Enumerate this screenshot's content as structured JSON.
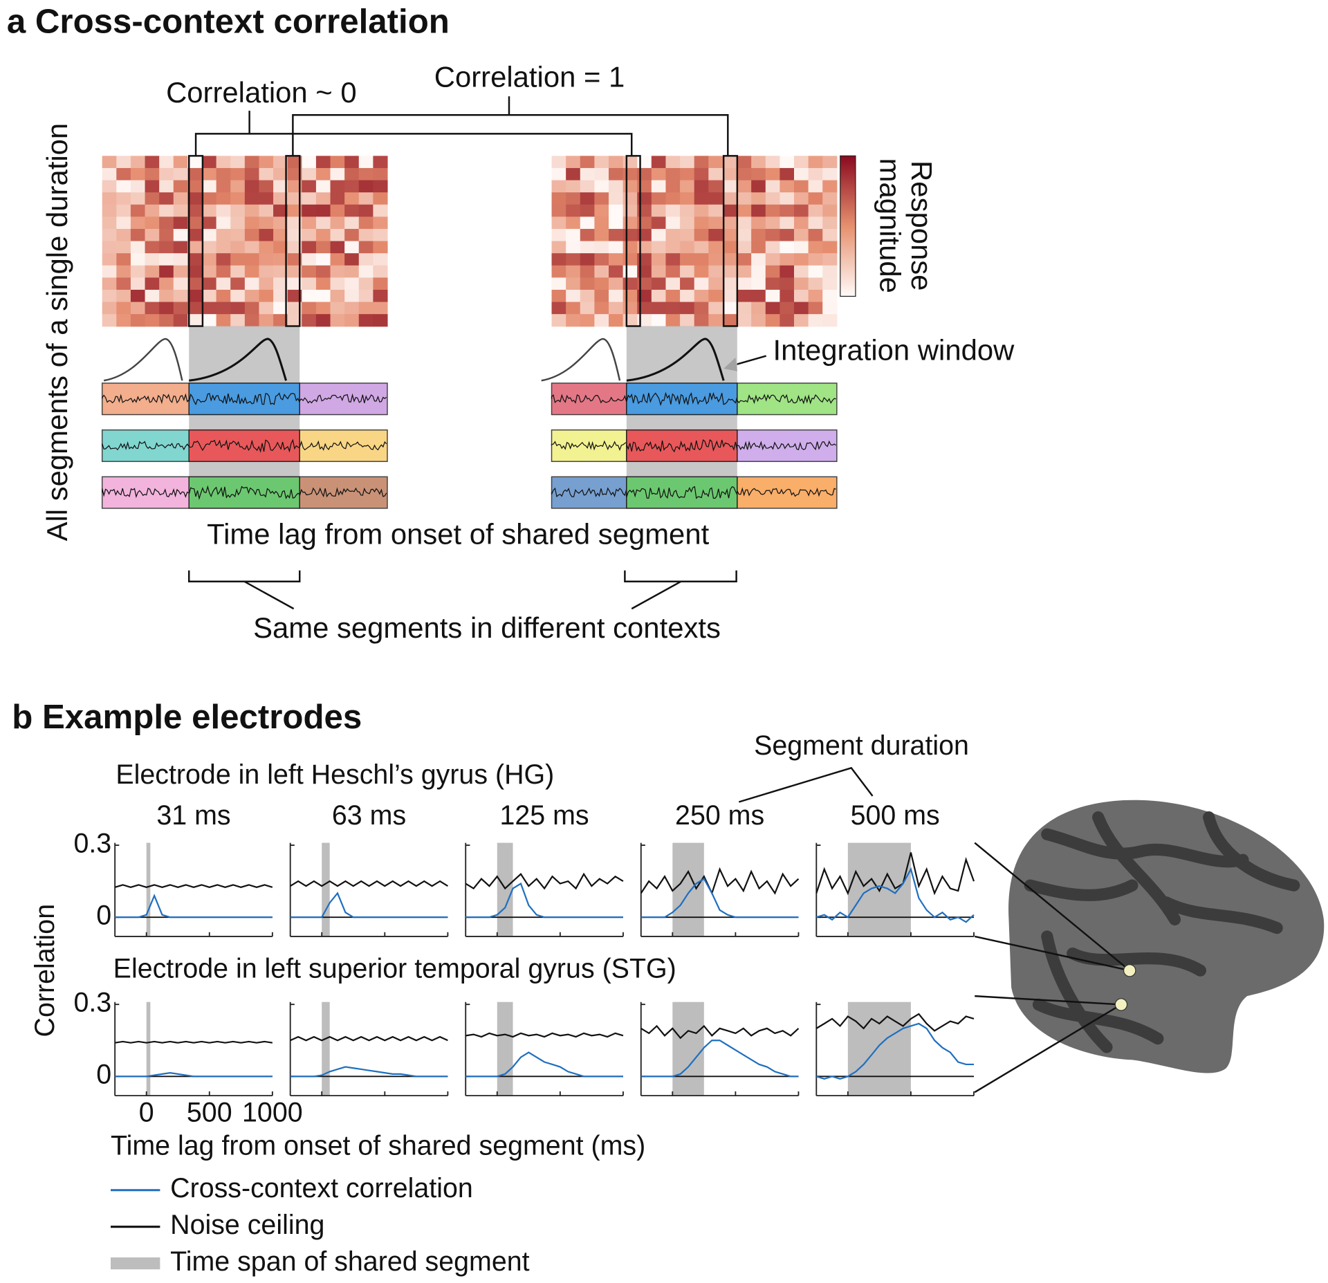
{
  "panel_a": {
    "title": "a Cross-context correlation",
    "corr_zero": "Correlation ~ 0",
    "corr_one": "Correlation = 1",
    "y_label": "All segments of a single duration",
    "colorbar_label": [
      "Response",
      "magnitude"
    ],
    "integration_label": "Integration window",
    "x_label": "Time lag from onset of shared segment",
    "bracket_label": "Same segments in different contexts"
  },
  "panel_b": {
    "title": "b Example electrodes",
    "duration_title": "Segment duration",
    "durations": [
      {
        "value": 31,
        "label": "31 ms"
      },
      {
        "value": 63,
        "label": "63 ms"
      },
      {
        "value": 125,
        "label": "125 ms"
      },
      {
        "value": 250,
        "label": "250 ms"
      },
      {
        "value": 500,
        "label": "500 ms"
      }
    ],
    "y_label": "Correlation",
    "x_label": "Time lag from onset of shared segment (ms)",
    "xlim": [
      -250,
      1000
    ],
    "ylim": [
      -0.08,
      0.31
    ],
    "xticks": [
      0,
      500,
      1000
    ],
    "yticks": [
      0,
      0.3
    ],
    "x": [
      -250,
      -187.5,
      -125,
      -62.5,
      0,
      62.5,
      125,
      187.5,
      250,
      312.5,
      375,
      437.5,
      500,
      562.5,
      625,
      687.5,
      750,
      812.5,
      875,
      937.5,
      1000
    ],
    "span_color": "#bdbdbd",
    "blue_color": "#1f6fc0",
    "black_color": "#111111",
    "legend": [
      "Cross-context correlation",
      "Noise ceiling",
      "Time span of shared segment"
    ],
    "electrodes": [
      {
        "title": "Electrode in left Heschl’s gyrus (HG)",
        "panels": [
          {
            "blue": [
              0,
              0,
              0,
              0,
              0.01,
              0.09,
              0.01,
              0,
              0,
              0,
              0,
              0,
              0,
              0,
              0,
              0,
              0,
              0,
              0,
              0,
              0
            ],
            "black": [
              0.125,
              0.135,
              0.125,
              0.135,
              0.125,
              0.135,
              0.125,
              0.135,
              0.125,
              0.135,
              0.125,
              0.135,
              0.125,
              0.135,
              0.125,
              0.135,
              0.125,
              0.135,
              0.125,
              0.135,
              0.125
            ]
          },
          {
            "blue": [
              0,
              0,
              0,
              0,
              0,
              0.06,
              0.1,
              0.02,
              0,
              0,
              0,
              0,
              0,
              0,
              0,
              0,
              0,
              0,
              0,
              0,
              0
            ],
            "black": [
              0.13,
              0.15,
              0.13,
              0.15,
              0.13,
              0.15,
              0.13,
              0.15,
              0.13,
              0.15,
              0.13,
              0.15,
              0.13,
              0.15,
              0.13,
              0.15,
              0.13,
              0.15,
              0.13,
              0.15,
              0.13
            ]
          },
          {
            "blue": [
              0,
              0,
              0,
              0,
              0.01,
              0.04,
              0.12,
              0.14,
              0.05,
              0.01,
              0,
              0,
              0,
              0,
              0,
              0,
              0,
              0,
              0,
              0,
              0
            ],
            "black": [
              0.14,
              0.12,
              0.16,
              0.13,
              0.17,
              0.12,
              0.15,
              0.18,
              0.13,
              0.16,
              0.12,
              0.17,
              0.14,
              0.15,
              0.12,
              0.18,
              0.13,
              0.16,
              0.14,
              0.17,
              0.15
            ]
          },
          {
            "blue": [
              0,
              0,
              0,
              0,
              0.02,
              0.05,
              0.1,
              0.14,
              0.16,
              0.1,
              0.03,
              0.01,
              0,
              0,
              0,
              0,
              0,
              0,
              0,
              0,
              0
            ],
            "black": [
              0.1,
              0.15,
              0.12,
              0.17,
              0.11,
              0.14,
              0.19,
              0.12,
              0.17,
              0.1,
              0.2,
              0.13,
              0.16,
              0.11,
              0.19,
              0.12,
              0.15,
              0.1,
              0.18,
              0.13,
              0.16
            ]
          },
          {
            "blue": [
              0,
              0.01,
              -0.01,
              0.02,
              0,
              0.05,
              0.1,
              0.12,
              0.13,
              0.12,
              0.1,
              0.14,
              0.2,
              0.08,
              0.03,
              0,
              0.02,
              -0.01,
              0,
              -0.02,
              0.01
            ],
            "black": [
              0.1,
              0.2,
              0.12,
              0.17,
              0.1,
              0.19,
              0.13,
              0.16,
              0.11,
              0.18,
              0.12,
              0.14,
              0.27,
              0.13,
              0.2,
              0.1,
              0.17,
              0.12,
              0.11,
              0.24,
              0.15
            ]
          }
        ]
      },
      {
        "title": "Electrode in left superior temporal gyrus (STG)",
        "panels": [
          {
            "blue": [
              0,
              0,
              0,
              0,
              0,
              0.005,
              0.01,
              0.015,
              0.01,
              0.005,
              0,
              0,
              0,
              0,
              0,
              0,
              0,
              0,
              0,
              0,
              0
            ],
            "black": [
              0.14,
              0.145,
              0.14,
              0.145,
              0.14,
              0.145,
              0.14,
              0.145,
              0.14,
              0.145,
              0.14,
              0.145,
              0.14,
              0.145,
              0.14,
              0.145,
              0.14,
              0.145,
              0.14,
              0.145,
              0.14
            ]
          },
          {
            "blue": [
              0,
              0,
              0,
              0,
              0.005,
              0.02,
              0.03,
              0.04,
              0.035,
              0.03,
              0.025,
              0.02,
              0.015,
              0.01,
              0.01,
              0.005,
              0,
              0,
              0,
              0,
              0
            ],
            "black": [
              0.15,
              0.165,
              0.15,
              0.165,
              0.15,
              0.165,
              0.15,
              0.165,
              0.15,
              0.165,
              0.15,
              0.165,
              0.15,
              0.165,
              0.15,
              0.165,
              0.15,
              0.165,
              0.15,
              0.165,
              0.15
            ]
          },
          {
            "blue": [
              0,
              0,
              0,
              0,
              0,
              0.01,
              0.04,
              0.08,
              0.1,
              0.08,
              0.06,
              0.05,
              0.04,
              0.02,
              0.01,
              0,
              0,
              0,
              0,
              0,
              0
            ],
            "black": [
              0.17,
              0.175,
              0.165,
              0.18,
              0.17,
              0.175,
              0.165,
              0.18,
              0.17,
              0.175,
              0.165,
              0.18,
              0.17,
              0.175,
              0.165,
              0.18,
              0.17,
              0.175,
              0.165,
              0.18,
              0.17
            ]
          },
          {
            "blue": [
              0,
              0,
              0,
              0,
              0,
              0.01,
              0.04,
              0.08,
              0.12,
              0.15,
              0.15,
              0.13,
              0.11,
              0.09,
              0.07,
              0.05,
              0.04,
              0.02,
              0.01,
              0,
              0
            ],
            "black": [
              0.2,
              0.18,
              0.21,
              0.17,
              0.2,
              0.16,
              0.19,
              0.18,
              0.21,
              0.17,
              0.2,
              0.19,
              0.18,
              0.2,
              0.17,
              0.19,
              0.2,
              0.18,
              0.19,
              0.17,
              0.2
            ]
          },
          {
            "blue": [
              0,
              -0.01,
              0,
              -0.01,
              0,
              0.02,
              0.05,
              0.09,
              0.13,
              0.16,
              0.18,
              0.2,
              0.21,
              0.22,
              0.2,
              0.15,
              0.12,
              0.1,
              0.06,
              0.05,
              0.05
            ],
            "black": [
              0.2,
              0.22,
              0.24,
              0.21,
              0.25,
              0.23,
              0.2,
              0.24,
              0.22,
              0.25,
              0.23,
              0.21,
              0.24,
              0.26,
              0.22,
              0.19,
              0.21,
              0.23,
              0.22,
              0.25,
              0.24
            ]
          }
        ]
      }
    ]
  }
}
